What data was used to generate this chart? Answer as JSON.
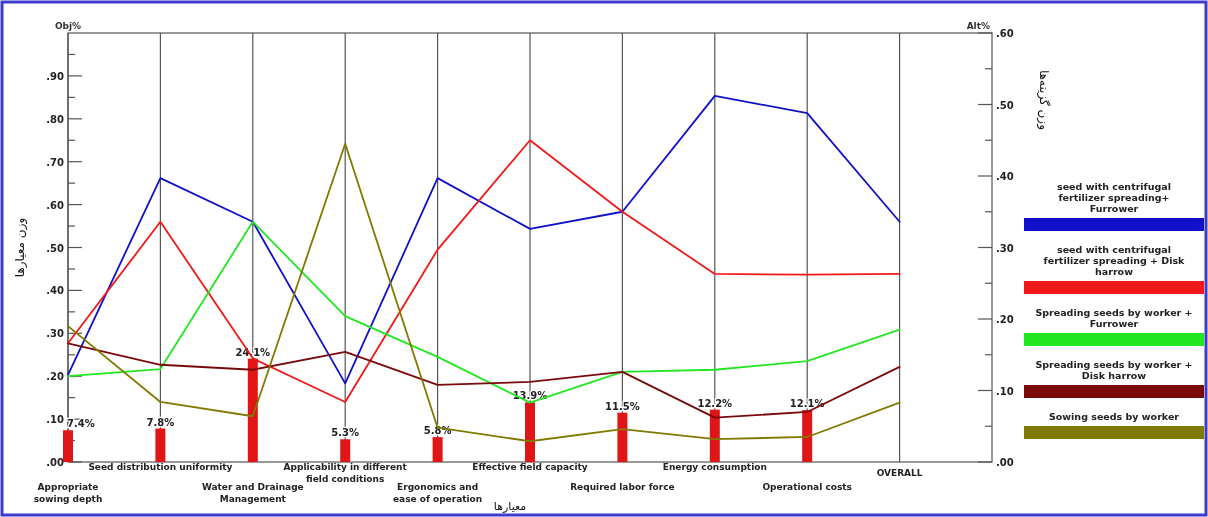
{
  "chart_data": {
    "type": "line",
    "categories": [
      "Appropriate sowing depth",
      "Seed distribution uniformity",
      "Water and Drainage Management",
      "Applicability in different field conditions",
      "Ergonomics and ease of operation",
      "Effective field capacity",
      "Required labor force",
      "Energy consumption",
      "Operational costs",
      "OVERALL"
    ],
    "series": [
      {
        "type": "bar",
        "axis": "y",
        "color": "#e01515",
        "values": [
          0.074,
          0.078,
          0.241,
          0.053,
          0.058,
          0.139,
          0.115,
          0.122,
          0.121,
          null
        ],
        "value_labels": [
          "7.4%",
          "7.8%",
          "24.1%",
          "5.3%",
          "5.8%",
          "13.9%",
          "11.5%",
          "12.2%",
          "12.1%",
          null
        ]
      },
      {
        "name": "seed with centrifugal fertilizer spreading+ Furrower",
        "axis": "y2",
        "color": "#1010c8",
        "values": [
          0.122,
          0.397,
          0.336,
          0.11,
          0.397,
          0.326,
          0.35,
          0.512,
          0.488,
          0.336
        ]
      },
      {
        "name": "seed with centrifugal fertilizer spreading + Disk harrow",
        "axis": "y2",
        "color": "#f01818",
        "values": [
          0.166,
          0.336,
          0.145,
          0.084,
          0.297,
          0.45,
          0.35,
          0.263,
          0.262,
          0.263
        ]
      },
      {
        "name": "Spreading seeds by worker + Furrower",
        "axis": "y2",
        "color": "#22e622",
        "values": [
          0.12,
          0.13,
          0.336,
          0.204,
          0.147,
          0.083,
          0.126,
          0.129,
          0.141,
          0.185
        ]
      },
      {
        "name": "Spreading seeds by worker + Disk harrow",
        "axis": "y2",
        "color": "#7a0a0a",
        "values": [
          0.166,
          0.136,
          0.129,
          0.154,
          0.108,
          0.112,
          0.126,
          0.062,
          0.07,
          0.133
        ]
      },
      {
        "name": "Sowing seeds by worker",
        "axis": "y2",
        "color": "#807a00",
        "values": [
          0.19,
          0.084,
          0.064,
          0.445,
          0.048,
          0.029,
          0.046,
          0.032,
          0.035,
          0.083
        ]
      }
    ],
    "ylim": [
      0,
      1
    ],
    "yticks": [
      {
        "value": 0,
        "label": ".00"
      },
      {
        "value": 0.05,
        "label": null
      },
      {
        "value": 0.1,
        "label": ".10"
      },
      {
        "value": 0.15,
        "label": null
      },
      {
        "value": 0.2,
        "label": ".20"
      },
      {
        "value": 0.25,
        "label": null
      },
      {
        "value": 0.3,
        "label": ".30"
      },
      {
        "value": 0.35,
        "label": null
      },
      {
        "value": 0.4,
        "label": ".40"
      },
      {
        "value": 0.45,
        "label": null
      },
      {
        "value": 0.5,
        "label": ".50"
      },
      {
        "value": 0.55,
        "label": null
      },
      {
        "value": 0.6,
        "label": ".60"
      },
      {
        "value": 0.65,
        "label": null
      },
      {
        "value": 0.7,
        "label": ".70"
      },
      {
        "value": 0.75,
        "label": null
      },
      {
        "value": 0.8,
        "label": ".80"
      },
      {
        "value": 0.85,
        "label": null
      },
      {
        "value": 0.9,
        "label": ".90"
      },
      {
        "value": 0.95,
        "label": null
      }
    ],
    "y2lim": [
      0,
      0.6
    ],
    "y2ticks": [
      {
        "value": 0,
        "label": ".00"
      },
      {
        "value": 0.05,
        "label": null
      },
      {
        "value": 0.1,
        "label": ".10"
      },
      {
        "value": 0.15,
        "label": null
      },
      {
        "value": 0.2,
        "label": ".20"
      },
      {
        "value": 0.25,
        "label": null
      },
      {
        "value": 0.3,
        "label": ".30"
      },
      {
        "value": 0.35,
        "label": null
      },
      {
        "value": 0.4,
        "label": ".40"
      },
      {
        "value": 0.45,
        "label": null
      },
      {
        "value": 0.5,
        "label": ".50"
      },
      {
        "value": 0.55,
        "label": null
      },
      {
        "value": 0.6,
        "label": ".60"
      }
    ],
    "ylabel": "وزن معیارها",
    "y2label": "وزن گزینه‌ها",
    "xlabel": "معیارها",
    "annotations": [
      "Obj%",
      "Alt%"
    ],
    "grid": "x",
    "legend": "right"
  }
}
